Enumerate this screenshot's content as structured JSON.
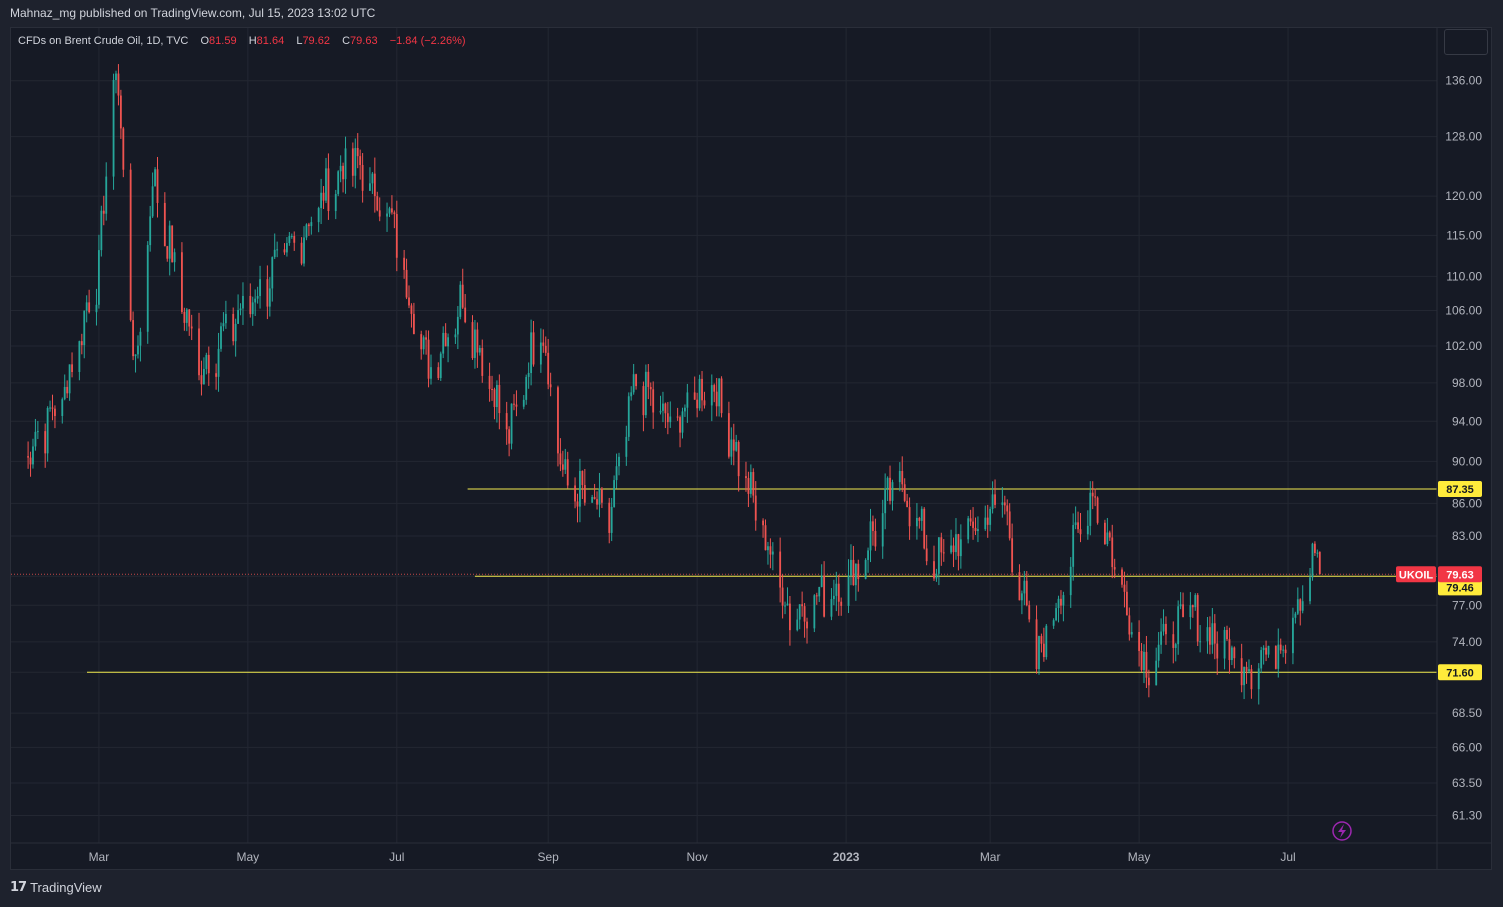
{
  "header": {
    "publisher": "Mahnaz_mg published on TradingView.com, Jul 15, 2023 13:02 UTC"
  },
  "legend": {
    "symbol": "CFDs on Brent Crude Oil, 1D, TVC",
    "open_label": "O",
    "open": "81.59",
    "high_label": "H",
    "high": "81.64",
    "low_label": "L",
    "low": "79.62",
    "close_label": "C",
    "close": "79.63",
    "change": "−1.84 (−2.26%)"
  },
  "footer": {
    "brand": "TradingView"
  },
  "colors": {
    "background": "#161a25",
    "up": "#26a69a",
    "down": "#ef5350",
    "level_line": "#f2e94e",
    "tag_yellow": "#ffeb3b",
    "tag_red": "#f23645",
    "grid": "#232732"
  },
  "chart_data": {
    "type": "candlestick",
    "symbol": "UKOIL",
    "interval": "1D",
    "y_scale": "log",
    "ylim": [
      59.5,
      144.0
    ],
    "y_ticks": [
      "61.30",
      "63.50",
      "66.00",
      "68.50",
      "71.60",
      "74.00",
      "77.00",
      "79.46",
      "83.00",
      "86.00",
      "90.00",
      "94.00",
      "98.00",
      "102.00",
      "106.00",
      "110.00",
      "115.00",
      "120.00",
      "128.00",
      "136.00"
    ],
    "x_ticks": [
      "Mar",
      "May",
      "Jul",
      "Sep",
      "Nov",
      "2023",
      "Mar",
      "May",
      "Jul"
    ],
    "last_price": 79.63,
    "last_price_label": "UKOIL",
    "horizontal_levels": [
      87.35,
      79.46,
      71.6
    ],
    "ohlc_anchors": [
      {
        "date": "2022-01-28",
        "close": 90
      },
      {
        "date": "2022-02-14",
        "close": 96
      },
      {
        "date": "2022-03-01",
        "close": 111
      },
      {
        "date": "2022-03-08",
        "close": 139
      },
      {
        "date": "2022-03-16",
        "close": 98
      },
      {
        "date": "2022-03-23",
        "close": 122
      },
      {
        "date": "2022-04-11",
        "close": 99
      },
      {
        "date": "2022-04-27",
        "close": 105
      },
      {
        "date": "2022-05-17",
        "close": 112
      },
      {
        "date": "2022-06-08",
        "close": 123
      },
      {
        "date": "2022-06-14",
        "close": 124
      },
      {
        "date": "2022-06-28",
        "close": 117
      },
      {
        "date": "2022-07-14",
        "close": 99
      },
      {
        "date": "2022-07-28",
        "close": 107
      },
      {
        "date": "2022-08-16",
        "close": 92
      },
      {
        "date": "2022-08-29",
        "close": 105
      },
      {
        "date": "2022-09-07",
        "close": 88
      },
      {
        "date": "2022-09-26",
        "close": 84
      },
      {
        "date": "2022-10-07",
        "close": 98
      },
      {
        "date": "2022-10-21",
        "close": 93
      },
      {
        "date": "2022-11-07",
        "close": 98
      },
      {
        "date": "2022-11-28",
        "close": 83
      },
      {
        "date": "2022-12-09",
        "close": 76
      },
      {
        "date": "2023-01-03",
        "close": 79
      },
      {
        "date": "2023-01-23",
        "close": 88
      },
      {
        "date": "2023-02-06",
        "close": 80
      },
      {
        "date": "2023-03-06",
        "close": 86
      },
      {
        "date": "2023-03-20",
        "close": 72
      },
      {
        "date": "2023-04-12",
        "close": 87
      },
      {
        "date": "2023-05-03",
        "close": 72
      },
      {
        "date": "2023-05-22",
        "close": 76
      },
      {
        "date": "2023-06-12",
        "close": 72
      },
      {
        "date": "2023-06-26",
        "close": 73
      },
      {
        "date": "2023-07-13",
        "close": 81.3
      },
      {
        "date": "2023-07-14",
        "close": 79.63
      }
    ]
  }
}
